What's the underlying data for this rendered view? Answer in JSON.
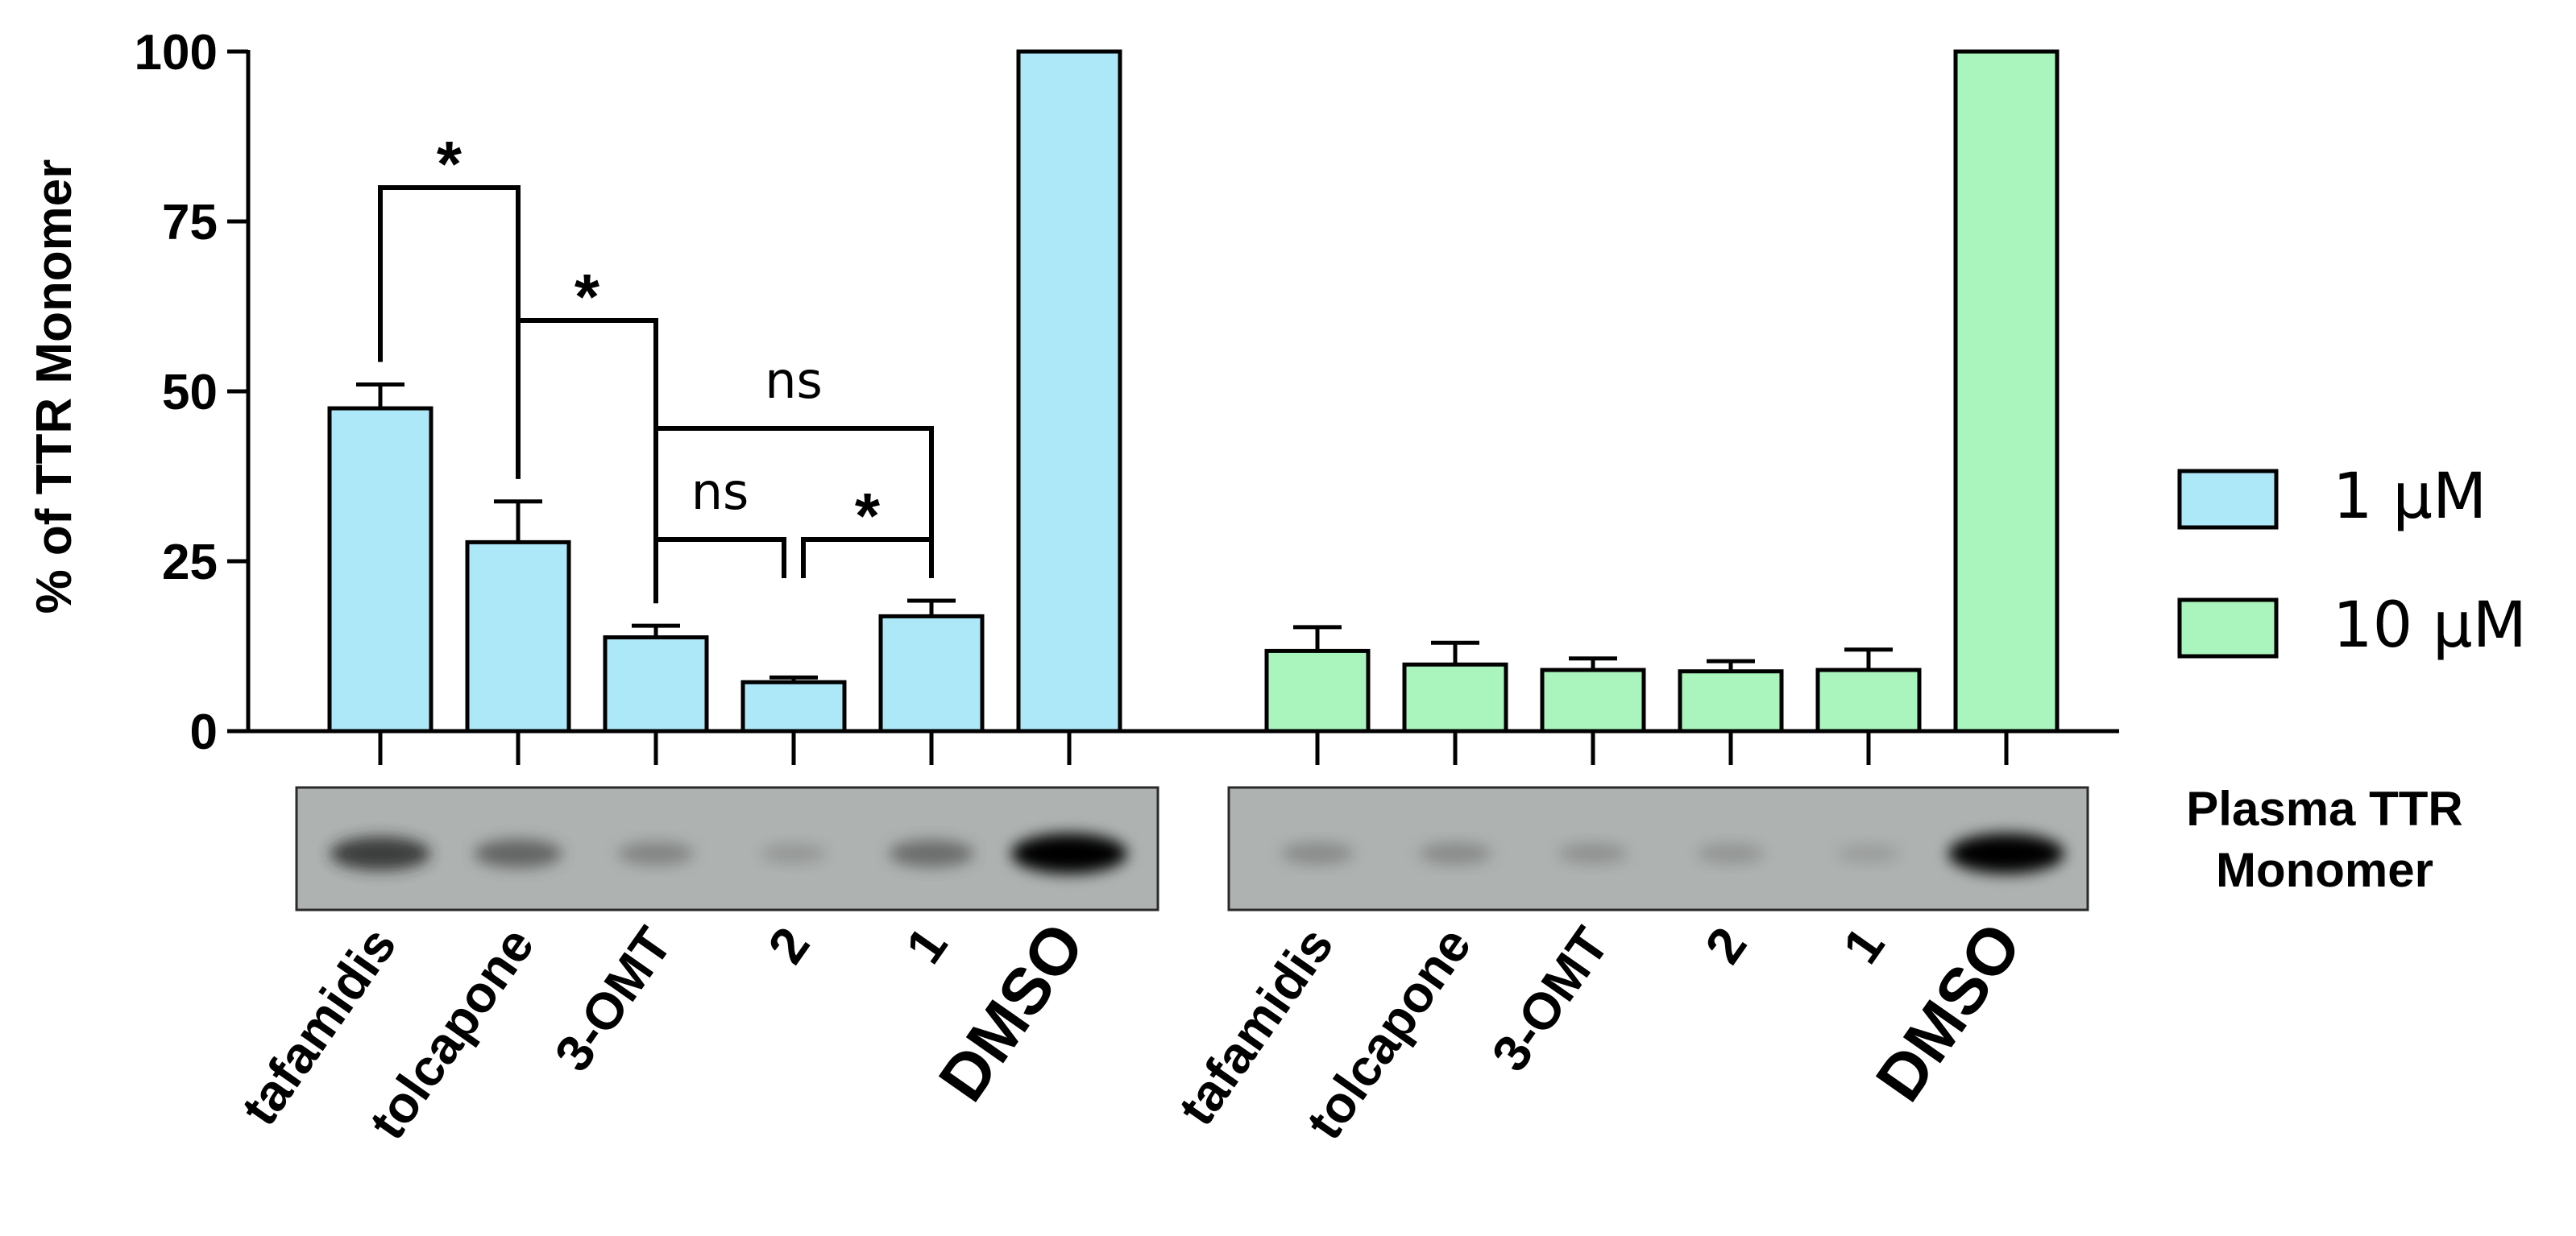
{
  "chart_data": {
    "type": "bar",
    "ylabel": "% of TTR Monomer",
    "ylim": [
      0,
      100
    ],
    "yticks": [
      0,
      25,
      50,
      75,
      100
    ],
    "grid": false,
    "legend_position": "right",
    "categories": [
      "tafamidis",
      "tolcapone",
      "3-OMT",
      "2",
      "1",
      "DMSO"
    ],
    "series": [
      {
        "name": "1 μM",
        "color": "#ace8f8",
        "values": [
          47.5,
          27.8,
          13.8,
          7.2,
          16.9,
          100
        ],
        "errors": [
          3.5,
          6.0,
          1.7,
          0.7,
          2.3,
          0
        ]
      },
      {
        "name": "10 μM",
        "color": "#a9f5bd",
        "values": [
          11.8,
          9.8,
          9.0,
          8.8,
          9.0,
          100
        ],
        "errors": [
          3.5,
          3.2,
          1.7,
          1.5,
          3.0,
          0
        ]
      }
    ],
    "significance": [
      {
        "series": 0,
        "from": 0,
        "to": 1,
        "label": "*"
      },
      {
        "series": 0,
        "from": 1,
        "to": 2,
        "label": "*"
      },
      {
        "series": 0,
        "from": 2,
        "to": 4,
        "label": "ns"
      },
      {
        "series": 0,
        "from": 2,
        "to": 3,
        "label": "ns"
      },
      {
        "series": 0,
        "from": 3,
        "to": 4,
        "label": "*"
      }
    ],
    "blot_label": [
      "Plasma TTR",
      "Monomer"
    ],
    "blot_intensity": [
      [
        0.75,
        0.55,
        0.35,
        0.2,
        0.5,
        1.0
      ],
      [
        0.3,
        0.3,
        0.25,
        0.22,
        0.15,
        1.0
      ]
    ]
  }
}
